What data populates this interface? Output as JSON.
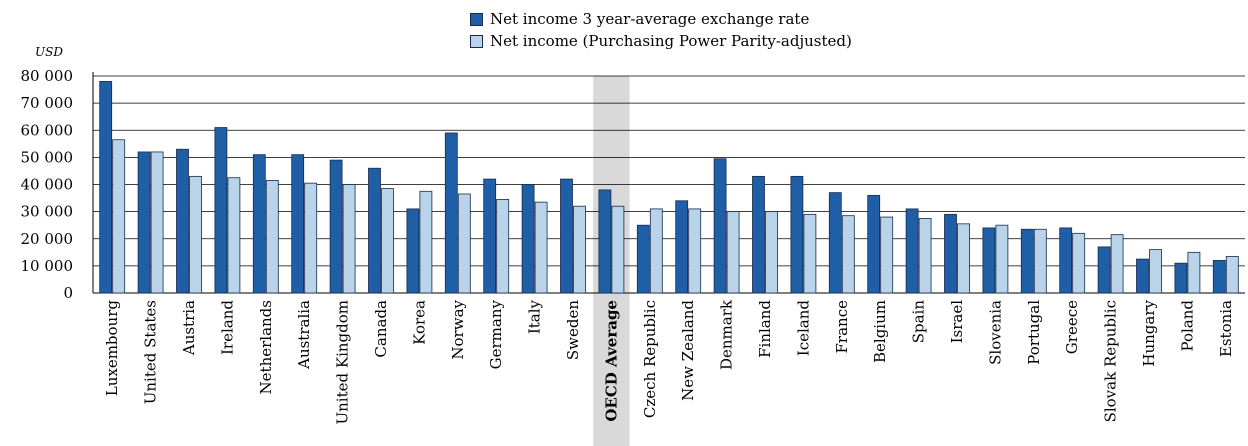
{
  "chart_data": {
    "type": "bar",
    "unit": "USD",
    "ylim": [
      0,
      80000
    ],
    "yticks": [
      "0",
      "10 000",
      "20 000",
      "30 000",
      "40 000",
      "50 000",
      "60 000",
      "70 000",
      "80 000"
    ],
    "grid": true,
    "legend_position": "top-center",
    "highlight_category": "OECD Average",
    "categories": [
      "Luxembourg",
      "United States",
      "Austria",
      "Ireland",
      "Netherlands",
      "Australia",
      "United Kingdom",
      "Canada",
      "Korea",
      "Norway",
      "Germany",
      "Italy",
      "Sweden",
      "OECD Average",
      "Czech Republic",
      "New Zealand",
      "Denmark",
      "Finland",
      "Iceland",
      "France",
      "Belgium",
      "Spain",
      "Israel",
      "Slovenia",
      "Portugal",
      "Greece",
      "Slovak Republic",
      "Hungary",
      "Poland",
      "Estonia"
    ],
    "series": [
      {
        "name": "Net income 3 year-average exchange rate",
        "color": "#1f5fa8",
        "values": [
          78000,
          52000,
          53000,
          61000,
          51000,
          51000,
          49000,
          46000,
          31000,
          59000,
          42000,
          40000,
          42000,
          38000,
          25000,
          34000,
          49500,
          43000,
          43000,
          37000,
          36000,
          31000,
          29000,
          24000,
          23500,
          24000,
          17000,
          12500,
          11000,
          12000
        ]
      },
      {
        "name": "Net income (Purchasing Power Parity-adjusted)",
        "color": "#b8d3ea",
        "values": [
          56500,
          52000,
          43000,
          42500,
          41500,
          40500,
          40000,
          38500,
          37500,
          36500,
          34500,
          33500,
          32000,
          32000,
          31000,
          31000,
          30000,
          30000,
          29000,
          28500,
          28000,
          27500,
          25500,
          25000,
          23500,
          22000,
          21500,
          16000,
          15000,
          13500
        ]
      }
    ]
  }
}
